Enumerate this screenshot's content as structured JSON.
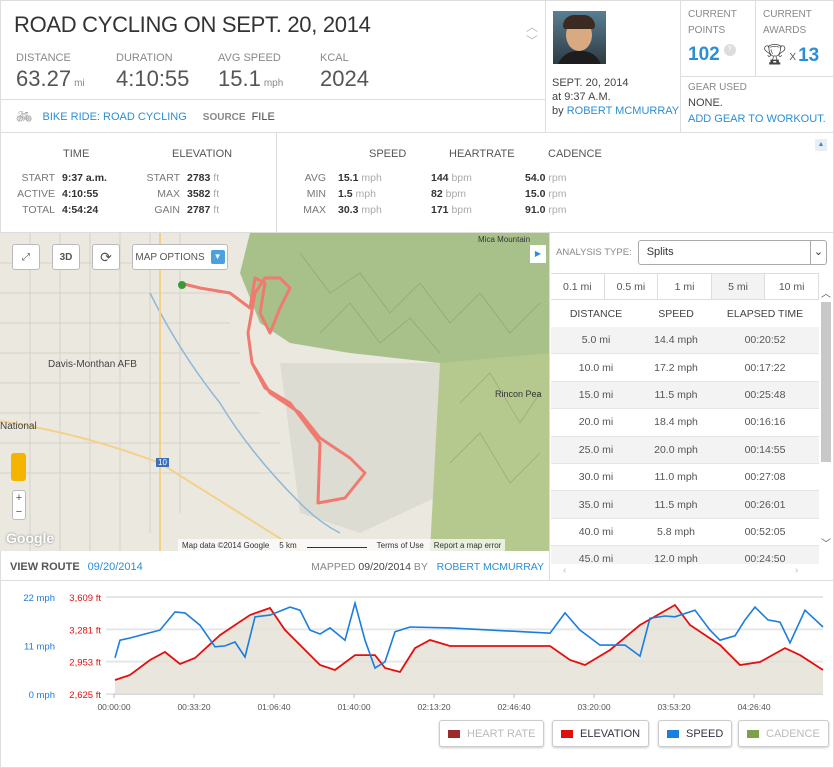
{
  "header": {
    "title": "ROAD CYCLING ON SEPT. 20, 2014",
    "stats": [
      {
        "label": "DISTANCE",
        "value": "63.27",
        "unit": "mi"
      },
      {
        "label": "DURATION",
        "value": "4:10:55",
        "unit": ""
      },
      {
        "label": "AVG SPEED",
        "value": "15.1",
        "unit": "mph"
      },
      {
        "label": "KCAL",
        "value": "2024",
        "unit": ""
      }
    ],
    "activity_type": "BIKE RIDE: ROAD CYCLING",
    "source_label": "SOURCE",
    "source_value": "FILE"
  },
  "user": {
    "date": "SEPT. 20, 2014",
    "time": "at 9:37 A.M.",
    "by": "by",
    "name": "ROBERT MCMURRAY"
  },
  "points": {
    "label1": "CURRENT",
    "label2": "POINTS",
    "value": "102",
    "help": "?"
  },
  "awards": {
    "label1": "CURRENT",
    "label2": "AWARDS",
    "x": "X",
    "value": "13"
  },
  "gear": {
    "label": "GEAR USED",
    "value": "NONE.",
    "link": "ADD GEAR TO WORKOUT."
  },
  "summary": {
    "time": {
      "heading": "TIME",
      "rows": [
        [
          "START",
          "9:37 a.m."
        ],
        [
          "ACTIVE",
          "4:10:55"
        ],
        [
          "TOTAL",
          "4:54:24"
        ]
      ]
    },
    "elevation": {
      "heading": "ELEVATION",
      "rows": [
        [
          "START",
          "2783",
          "ft"
        ],
        [
          "MAX",
          "3582",
          "ft"
        ],
        [
          "GAIN",
          "2787",
          "ft"
        ]
      ]
    },
    "headings": [
      "SPEED",
      "HEARTRATE",
      "CADENCE"
    ],
    "rows": [
      {
        "label": "AVG",
        "speed": "15.1",
        "su": "mph",
        "hr": "144",
        "hu": "bpm",
        "cad": "54.0",
        "cu": "rpm"
      },
      {
        "label": "MIN",
        "speed": "1.5",
        "su": "mph",
        "hr": "82",
        "hu": "bpm",
        "cad": "15.0",
        "cu": "rpm"
      },
      {
        "label": "MAX",
        "speed": "30.3",
        "su": "mph",
        "hr": "171",
        "hu": "bpm",
        "cad": "91.0",
        "cu": "rpm"
      }
    ]
  },
  "map": {
    "options": "MAP OPTIONS",
    "btn3d": "3D",
    "places": [
      "Davis-Monthan AFB",
      "National",
      "Rincon Pea",
      "Mica Mountain",
      "10"
    ],
    "attribution": "Map data ©2014 Google",
    "scale": "5 km",
    "terms": "Terms of Use",
    "report": "Report a map error",
    "logo": "Google",
    "view_route": "VIEW ROUTE",
    "route_date": "09/20/2014",
    "mapped": "MAPPED",
    "mapped_date": "09/20/2014",
    "mapped_by": "BY",
    "mapped_name": "ROBERT MCMURRAY"
  },
  "analysis": {
    "label": "ANALYSIS TYPE:",
    "selected": "Splits",
    "tabs": [
      "0.1 mi",
      "0.5 mi",
      "1 mi",
      "5 mi",
      "10 mi"
    ],
    "active_tab": "5 mi",
    "columns": [
      "DISTANCE",
      "SPEED",
      "ELAPSED TIME"
    ],
    "rows": [
      [
        "5.0 mi",
        "14.4 mph",
        "00:20:52"
      ],
      [
        "10.0 mi",
        "17.2 mph",
        "00:17:22"
      ],
      [
        "15.0 mi",
        "11.5 mph",
        "00:25:48"
      ],
      [
        "20.0 mi",
        "18.4 mph",
        "00:16:16"
      ],
      [
        "25.0 mi",
        "20.0 mph",
        "00:14:55"
      ],
      [
        "30.0 mi",
        "11.0 mph",
        "00:27:08"
      ],
      [
        "35.0 mi",
        "11.5 mph",
        "00:26:01"
      ],
      [
        "40.0 mi",
        "5.8 mph",
        "00:52:05"
      ],
      [
        "45.0 mi",
        "12.0 mph",
        "00:24:50"
      ]
    ]
  },
  "chart_data": {
    "type": "line",
    "x_ticks": [
      "00:00:00",
      "00:33:20",
      "01:06:40",
      "01:40:00",
      "02:13:20",
      "02:46:40",
      "03:20:00",
      "03:53:20",
      "04:26:40"
    ],
    "x_tick_seconds": [
      0,
      2000,
      4000,
      6000,
      8000,
      10000,
      12000,
      14000,
      16000
    ],
    "xlim": [
      0,
      17725
    ],
    "speed_ticks": [
      "22 mph",
      "11 mph",
      "0 mph"
    ],
    "speed_ylim": [
      0,
      22
    ],
    "elev_ticks": [
      "3,609 ft",
      "3,281 ft",
      "2,953 ft",
      "2,625 ft"
    ],
    "elev_ylim": [
      2625,
      3609
    ],
    "colors": {
      "speed": "#1a7de0",
      "elevation": "#e01010",
      "fill": "#e4e1d4"
    },
    "series": [
      {
        "name": "speed",
        "unit": "mph",
        "points": [
          [
            25,
            8.2
          ],
          [
            150,
            12.2
          ],
          [
            400,
            12.7
          ],
          [
            775,
            13.6
          ],
          [
            1150,
            14.5
          ],
          [
            1525,
            18.6
          ],
          [
            1775,
            18.4
          ],
          [
            2150,
            15.6
          ],
          [
            2525,
            10.7
          ],
          [
            2775,
            10.9
          ],
          [
            3025,
            11.8
          ],
          [
            3275,
            8.4
          ],
          [
            3525,
            17.5
          ],
          [
            3900,
            17.9
          ],
          [
            4400,
            19.7
          ],
          [
            4650,
            19
          ],
          [
            4900,
            14.5
          ],
          [
            5150,
            13.6
          ],
          [
            5400,
            15
          ],
          [
            5775,
            12.2
          ],
          [
            6025,
            20.6
          ],
          [
            6275,
            12.2
          ],
          [
            6525,
            5.9
          ],
          [
            6775,
            7.3
          ],
          [
            7025,
            14.1
          ],
          [
            7400,
            15.2
          ],
          [
            8400,
            15
          ],
          [
            10900,
            13.8
          ],
          [
            11275,
            18.4
          ],
          [
            11650,
            14.5
          ],
          [
            12150,
            11.1
          ],
          [
            12775,
            11.1
          ],
          [
            13150,
            8.6
          ],
          [
            13400,
            17.2
          ],
          [
            13775,
            17.7
          ],
          [
            14025,
            17.5
          ],
          [
            14525,
            19
          ],
          [
            14900,
            14.5
          ],
          [
            15150,
            12.2
          ],
          [
            15525,
            13.2
          ],
          [
            15775,
            16.8
          ],
          [
            16025,
            19.7
          ],
          [
            16350,
            16.8
          ],
          [
            16650,
            16.3
          ],
          [
            16900,
            11.6
          ],
          [
            17275,
            19
          ],
          [
            17725,
            15.2
          ]
        ]
      },
      {
        "name": "elevation",
        "unit": "ft",
        "points": [
          [
            25,
            2767
          ],
          [
            400,
            2818
          ],
          [
            900,
            2970
          ],
          [
            1275,
            3051
          ],
          [
            1650,
            2929
          ],
          [
            2025,
            2990
          ],
          [
            2650,
            3223
          ],
          [
            3400,
            3426
          ],
          [
            3900,
            3497
          ],
          [
            4275,
            3274
          ],
          [
            4650,
            3122
          ],
          [
            5150,
            2919
          ],
          [
            5525,
            2868
          ],
          [
            6025,
            3020
          ],
          [
            6525,
            3020
          ],
          [
            6775,
            2889
          ],
          [
            7150,
            2848
          ],
          [
            7525,
            3091
          ],
          [
            7900,
            3173
          ],
          [
            8400,
            3112
          ],
          [
            10900,
            3112
          ],
          [
            11400,
            2970
          ],
          [
            11775,
            2919
          ],
          [
            12400,
            3071
          ],
          [
            13150,
            3325
          ],
          [
            14025,
            3528
          ],
          [
            14400,
            3325
          ],
          [
            15150,
            3122
          ],
          [
            15650,
            2919
          ],
          [
            16150,
            2950
          ],
          [
            16775,
            3091
          ],
          [
            17150,
            3020
          ],
          [
            17725,
            2868
          ]
        ]
      }
    ],
    "legend": [
      {
        "label": "HEART RATE",
        "color": "#9b2a2a",
        "active": false
      },
      {
        "label": "ELEVATION",
        "color": "#e01010",
        "active": true
      },
      {
        "label": "SPEED",
        "color": "#1a7de0",
        "active": true
      },
      {
        "label": "CADENCE",
        "color": "#7ea04a",
        "active": false
      }
    ]
  }
}
